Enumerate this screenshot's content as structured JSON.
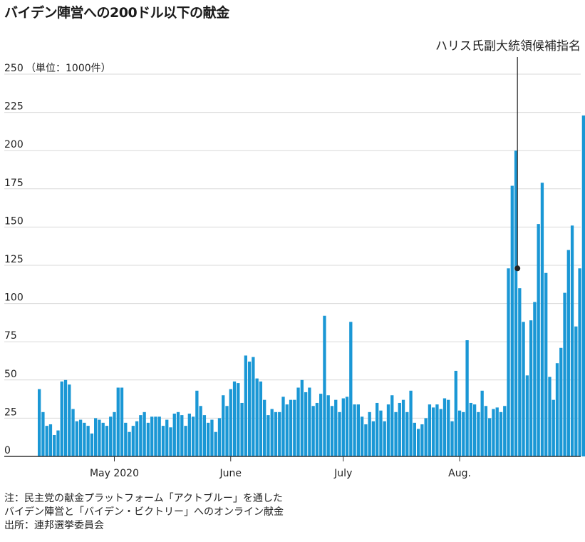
{
  "title": "バイデン陣営への200ドル以下の献金",
  "notes": {
    "line1": "注：民主党の献金プラットフォーム「アクトブルー」を通した",
    "line2": "バイデン陣営と「バイデン・ビクトリー」へのオンライン献金",
    "source": "出所：連邦選挙委員会"
  },
  "colors": {
    "bar": "#1a97d5",
    "grid": "#d9d9d9",
    "axis": "#333333",
    "annotation": "#222222"
  },
  "chart_data": {
    "type": "bar",
    "unit_label": "（単位：1000件）",
    "ylim": [
      0,
      250
    ],
    "yticks": [
      0,
      25,
      50,
      75,
      100,
      125,
      150,
      175,
      200,
      225,
      250
    ],
    "x_tick_labels": [
      {
        "label": "May 2020",
        "index": 20
      },
      {
        "label": "June",
        "index": 51
      },
      {
        "label": "July",
        "index": 81
      },
      {
        "label": "Aug.",
        "index": 112
      }
    ],
    "annotation": {
      "text": "ハリス氏副大統領候補指名",
      "index": 128,
      "value": 123
    },
    "values": [
      44,
      29,
      20,
      21,
      14,
      17,
      49,
      50,
      47,
      31,
      23,
      24,
      22,
      20,
      15,
      25,
      24,
      22,
      20,
      26,
      29,
      45,
      45,
      22,
      16,
      20,
      23,
      27,
      29,
      22,
      26,
      26,
      26,
      20,
      24,
      19,
      28,
      29,
      27,
      20,
      28,
      26,
      43,
      33,
      27,
      22,
      24,
      16,
      25,
      40,
      33,
      44,
      49,
      48,
      35,
      66,
      62,
      65,
      51,
      49,
      37,
      27,
      31,
      29,
      29,
      39,
      34,
      37,
      37,
      45,
      50,
      42,
      45,
      33,
      35,
      41,
      92,
      40,
      33,
      37,
      29,
      38,
      39,
      88,
      34,
      34,
      26,
      21,
      29,
      23,
      35,
      30,
      23,
      34,
      40,
      29,
      35,
      37,
      29,
      43,
      22,
      18,
      21,
      25,
      34,
      32,
      34,
      31,
      38,
      37,
      23,
      56,
      30,
      29,
      76,
      35,
      34,
      29,
      43,
      33,
      25,
      31,
      32,
      29,
      33,
      123,
      177,
      200,
      110,
      88,
      53,
      89,
      101,
      152,
      179,
      120,
      52,
      37,
      61,
      71,
      107,
      135,
      151,
      85,
      123,
      223
    ]
  }
}
